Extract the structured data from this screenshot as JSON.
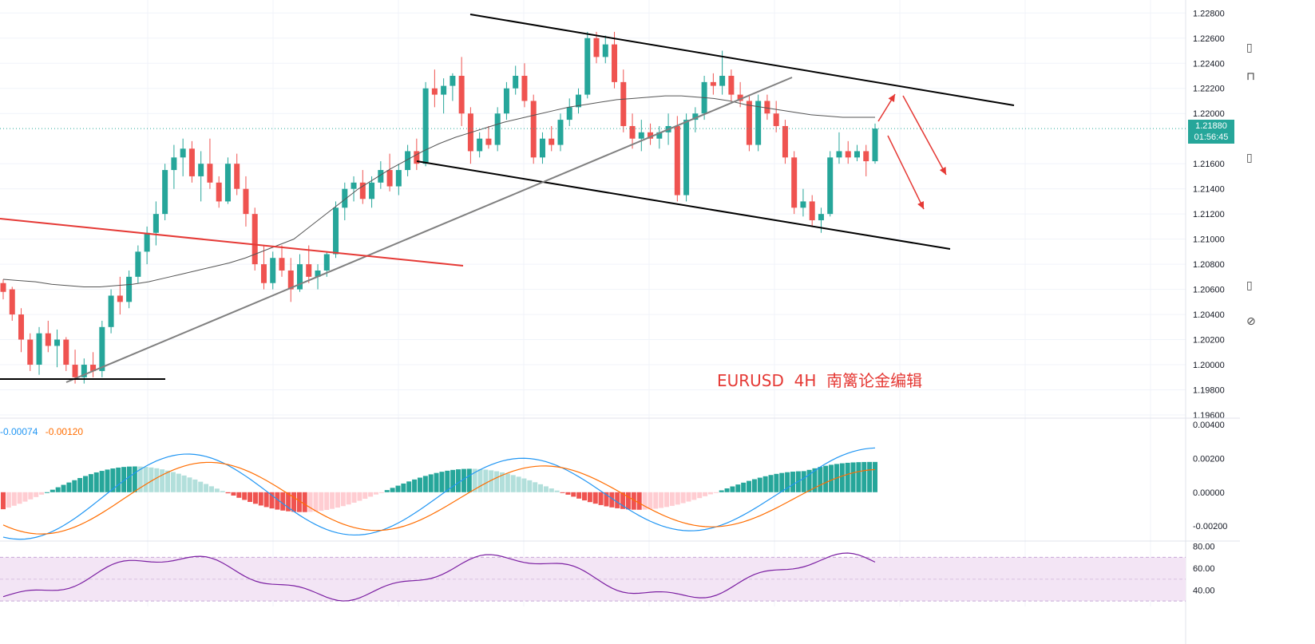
{
  "chart_data": {
    "type": "candlestick",
    "symbol_label": "EURUSD  4H  南篱论金编辑",
    "price_axis": {
      "ticks": [
        "1.22800",
        "1.22600",
        "1.22400",
        "1.22200",
        "1.22000",
        "1.21600",
        "1.21400",
        "1.21200",
        "1.21000",
        "1.20800",
        "1.20600",
        "1.20400",
        "1.20200",
        "1.20000",
        "1.19800",
        "1.19600"
      ],
      "range": [
        1.196,
        1.2284
      ]
    },
    "last_price": "1.21880",
    "countdown": "01:56:45",
    "candles_ohlc_sample": [
      [
        1.2065,
        1.2068,
        1.2052,
        1.2058
      ],
      [
        1.206,
        1.2062,
        1.2035,
        1.204
      ],
      [
        1.204,
        1.2045,
        1.201,
        1.202
      ],
      [
        1.202,
        1.2025,
        1.1995,
        1.2
      ],
      [
        1.2,
        1.203,
        1.1992,
        1.2025
      ],
      [
        1.2025,
        1.2035,
        1.201,
        1.2015
      ],
      [
        1.2015,
        1.2028,
        1.1998,
        1.202
      ],
      [
        1.202,
        1.2022,
        1.1995,
        1.2
      ],
      [
        1.2,
        1.2012,
        1.1985,
        1.199
      ],
      [
        1.199,
        1.2005,
        1.1985,
        1.2
      ],
      [
        1.2,
        1.201,
        1.199,
        1.1995
      ],
      [
        1.1995,
        1.2035,
        1.199,
        1.203
      ],
      [
        1.203,
        1.206,
        1.2025,
        1.2055
      ],
      [
        1.2055,
        1.207,
        1.204,
        1.205
      ],
      [
        1.205,
        1.2075,
        1.2045,
        1.207
      ],
      [
        1.207,
        1.2095,
        1.2065,
        1.209
      ],
      [
        1.209,
        1.211,
        1.208,
        1.2105
      ],
      [
        1.2105,
        1.213,
        1.2095,
        1.212
      ],
      [
        1.212,
        1.216,
        1.2115,
        1.2155
      ],
      [
        1.2155,
        1.2175,
        1.214,
        1.2165
      ],
      [
        1.2165,
        1.218,
        1.215,
        1.2172
      ],
      [
        1.2172,
        1.2178,
        1.2145,
        1.215
      ],
      [
        1.215,
        1.217,
        1.213,
        1.216
      ],
      [
        1.216,
        1.218,
        1.214,
        1.2145
      ],
      [
        1.2145,
        1.215,
        1.2125,
        1.213
      ],
      [
        1.213,
        1.2165,
        1.2128,
        1.216
      ],
      [
        1.216,
        1.2168,
        1.2135,
        1.214
      ],
      [
        1.214,
        1.215,
        1.211,
        1.212
      ],
      [
        1.212,
        1.2125,
        1.2075,
        1.208
      ],
      [
        1.208,
        1.2095,
        1.206,
        1.2065
      ],
      [
        1.2065,
        1.209,
        1.206,
        1.2085
      ],
      [
        1.2085,
        1.2095,
        1.207,
        1.2075
      ],
      [
        1.2075,
        1.2085,
        1.205,
        1.206
      ],
      [
        1.206,
        1.2088,
        1.2058,
        1.208
      ],
      [
        1.208,
        1.2095,
        1.2065,
        1.207
      ],
      [
        1.207,
        1.208,
        1.206,
        1.2075
      ],
      [
        1.2075,
        1.209,
        1.207,
        1.2088
      ],
      [
        1.2088,
        1.213,
        1.2085,
        1.2125
      ],
      [
        1.2125,
        1.2145,
        1.2115,
        1.214
      ],
      [
        1.214,
        1.215,
        1.213,
        1.2145
      ],
      [
        1.2145,
        1.2155,
        1.2128,
        1.2132
      ],
      [
        1.2132,
        1.215,
        1.2125,
        1.2145
      ],
      [
        1.2145,
        1.2162,
        1.214,
        1.2155
      ],
      [
        1.2155,
        1.2168,
        1.2138,
        1.2142
      ],
      [
        1.2142,
        1.216,
        1.2135,
        1.2155
      ],
      [
        1.2155,
        1.2175,
        1.215,
        1.217
      ],
      [
        1.217,
        1.218,
        1.2155,
        1.216
      ],
      [
        1.216,
        1.2225,
        1.2158,
        1.222
      ],
      [
        1.222,
        1.2235,
        1.2205,
        1.2215
      ],
      [
        1.2215,
        1.2228,
        1.22,
        1.2222
      ],
      [
        1.2222,
        1.2232,
        1.221,
        1.223
      ],
      [
        1.223,
        1.2245,
        1.219,
        1.22
      ],
      [
        1.22,
        1.2205,
        1.216,
        1.217
      ],
      [
        1.217,
        1.2185,
        1.2165,
        1.218
      ],
      [
        1.218,
        1.219,
        1.2172,
        1.2175
      ],
      [
        1.2175,
        1.2205,
        1.217,
        1.22
      ],
      [
        1.22,
        1.2225,
        1.2195,
        1.222
      ],
      [
        1.222,
        1.2238,
        1.2215,
        1.223
      ],
      [
        1.223,
        1.224,
        1.2205,
        1.221
      ],
      [
        1.221,
        1.2215,
        1.216,
        1.2165
      ],
      [
        1.2165,
        1.2185,
        1.216,
        1.218
      ],
      [
        1.218,
        1.219,
        1.217,
        1.2175
      ],
      [
        1.2175,
        1.22,
        1.217,
        1.2195
      ],
      [
        1.2195,
        1.2212,
        1.219,
        1.2205
      ],
      [
        1.2205,
        1.222,
        1.22,
        1.2215
      ],
      [
        1.2215,
        1.2265,
        1.2212,
        1.226
      ],
      [
        1.226,
        1.2265,
        1.224,
        1.2245
      ],
      [
        1.2245,
        1.2262,
        1.224,
        1.2255
      ],
      [
        1.2255,
        1.2265,
        1.222,
        1.2225
      ],
      [
        1.2225,
        1.2235,
        1.2185,
        1.219
      ],
      [
        1.219,
        1.22,
        1.2172,
        1.218
      ],
      [
        1.218,
        1.2195,
        1.217,
        1.2185
      ],
      [
        1.2185,
        1.2192,
        1.2175,
        1.218
      ],
      [
        1.218,
        1.219,
        1.2172,
        1.2185
      ],
      [
        1.2185,
        1.22,
        1.2175,
        1.219
      ],
      [
        1.219,
        1.2198,
        1.213,
        1.2135
      ],
      [
        1.2135,
        1.22,
        1.213,
        1.2195
      ],
      [
        1.2195,
        1.2205,
        1.2185,
        1.22
      ],
      [
        1.22,
        1.223,
        1.2195,
        1.2225
      ],
      [
        1.2225,
        1.2232,
        1.2215,
        1.2222
      ],
      [
        1.2222,
        1.225,
        1.2215,
        1.223
      ],
      [
        1.223,
        1.2235,
        1.221,
        1.2215
      ],
      [
        1.2215,
        1.2225,
        1.2205,
        1.221
      ],
      [
        1.221,
        1.2215,
        1.217,
        1.2175
      ],
      [
        1.2175,
        1.2215,
        1.217,
        1.221
      ],
      [
        1.221,
        1.2215,
        1.2195,
        1.22
      ],
      [
        1.22,
        1.221,
        1.2185,
        1.219
      ],
      [
        1.219,
        1.2195,
        1.216,
        1.2165
      ],
      [
        1.2165,
        1.217,
        1.212,
        1.2125
      ],
      [
        1.2125,
        1.214,
        1.2118,
        1.213
      ],
      [
        1.213,
        1.2135,
        1.211,
        1.2115
      ],
      [
        1.2115,
        1.2125,
        1.2105,
        1.212
      ],
      [
        1.212,
        1.217,
        1.2118,
        1.2165
      ],
      [
        1.2165,
        1.2185,
        1.216,
        1.217
      ],
      [
        1.217,
        1.2178,
        1.216,
        1.2165
      ],
      [
        1.2165,
        1.2175,
        1.2162,
        1.217
      ],
      [
        1.217,
        1.2175,
        1.215,
        1.2162
      ],
      [
        1.2162,
        1.2192,
        1.216,
        1.2188
      ]
    ],
    "ma_series": [
      1.2068,
      1.2067,
      1.2066,
      1.2064,
      1.2063,
      1.2062,
      1.2062,
      1.2063,
      1.2064,
      1.2066,
      1.2069,
      1.2072,
      1.2075,
      1.2078,
      1.2081,
      1.2085,
      1.209,
      1.2095,
      1.21,
      1.211,
      1.212,
      1.213,
      1.214,
      1.2148,
      1.2156,
      1.2163,
      1.217,
      1.2176,
      1.2181,
      1.2185,
      1.2189,
      1.2193,
      1.2196,
      1.2199,
      1.2202,
      1.2205,
      1.2207,
      1.2209,
      1.2211,
      1.2212,
      1.2213,
      1.2214,
      1.2214,
      1.2213,
      1.2212,
      1.221,
      1.2207,
      1.2205,
      1.2203,
      1.2201,
      1.2199,
      1.2198,
      1.2197,
      1.2197,
      1.2197
    ],
    "macd_legend": [
      "-0.00074",
      "-0.00120"
    ],
    "macd_axis_ticks": [
      "0.00400",
      "0.00200",
      "0.00000",
      "-0.00200"
    ],
    "rsi_axis_ticks": [
      "80.00",
      "60.00",
      "40.00"
    ],
    "colors": {
      "bull": "#26a69a",
      "bear": "#ef5350",
      "macd_line": "#2196f3",
      "signal_line": "#ff6d00",
      "rsi_line": "#7b1fa2",
      "rsi_band": "#f3e5f5",
      "annotation": "#e53935"
    }
  },
  "side_icons": [
    "magnet-icon",
    "lock-icon",
    "eye-icon",
    "trash-icon",
    "ruler-icon"
  ]
}
